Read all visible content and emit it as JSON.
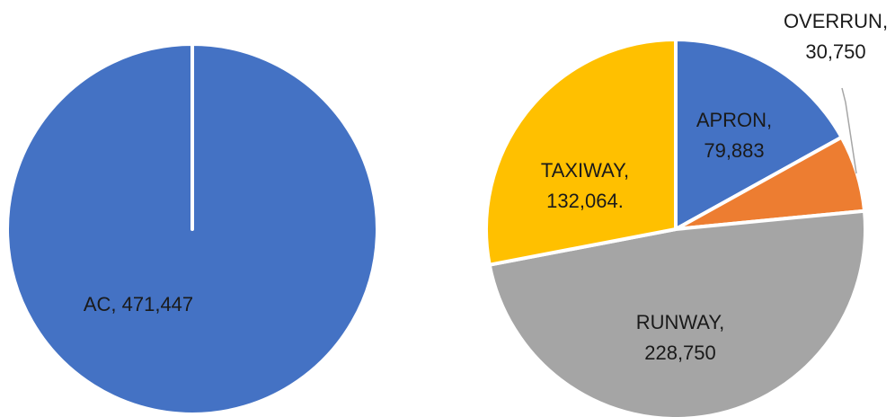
{
  "chart_data": [
    {
      "type": "pie",
      "categories": [
        "AC"
      ],
      "values": [
        471447
      ],
      "colors": [
        "#4472C4"
      ],
      "data_labels": [
        {
          "lines": [
            "AC, 471,447"
          ]
        }
      ],
      "legend": "none",
      "grid": false
    },
    {
      "type": "pie",
      "categories": [
        "APRON",
        "OVERRUN",
        "RUNWAY",
        "TAXIWAY"
      ],
      "values": [
        79883,
        30750,
        228750,
        132064
      ],
      "colors": [
        "#4472C4",
        "#ED7D31",
        "#A5A5A5",
        "#FFC000"
      ],
      "data_labels": [
        {
          "lines": [
            "APRON,",
            "79,883"
          ]
        },
        {
          "lines": [
            "OVERRUN,",
            "30,750"
          ]
        },
        {
          "lines": [
            "RUNWAY,",
            "228,750"
          ]
        },
        {
          "lines": [
            "TAXIWAY,",
            "132,064."
          ]
        }
      ],
      "legend": "none",
      "grid": false
    }
  ]
}
